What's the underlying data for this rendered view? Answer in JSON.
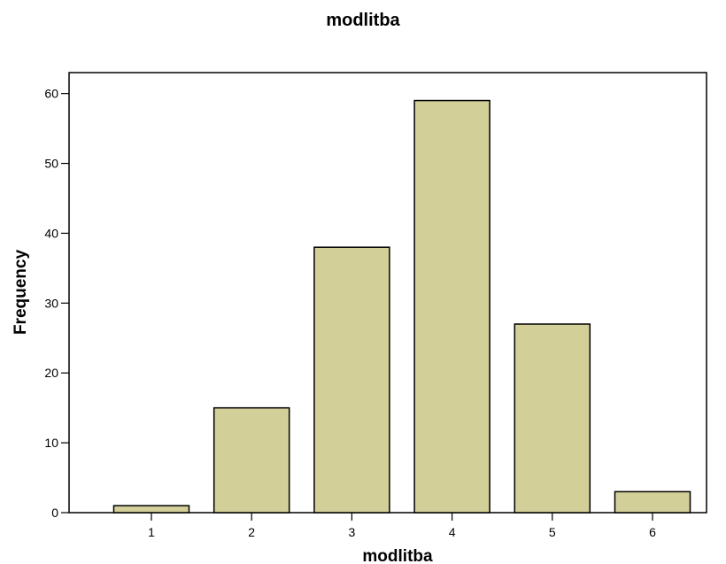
{
  "chart_data": {
    "type": "bar",
    "title": "modlitba",
    "xlabel": "modlitba",
    "ylabel": "Frequency",
    "categories": [
      "1",
      "2",
      "3",
      "4",
      "5",
      "6"
    ],
    "values": [
      1,
      15,
      38,
      59,
      27,
      3
    ],
    "ylim": [
      0,
      63
    ],
    "yticks": [
      "0",
      "10",
      "20",
      "30",
      "40",
      "50",
      "60"
    ],
    "grid": false,
    "bar_color": "#d3cf98",
    "bar_edge_color": "#000000"
  }
}
